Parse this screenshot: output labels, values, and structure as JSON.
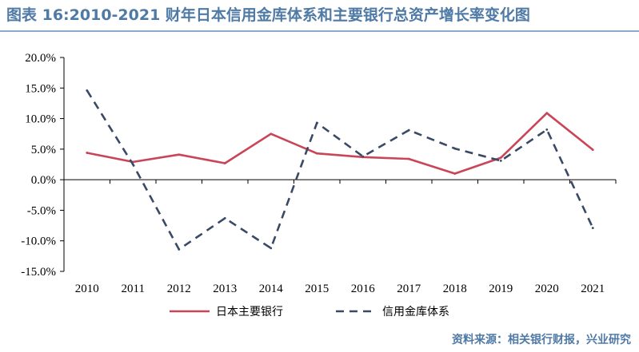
{
  "title": "图表 16:2010-2021 财年日本信用金库体系和主要银行总资产增长率变化图",
  "source": "资料来源：相关银行财报，兴业研究",
  "colors": {
    "series1": "#c94557",
    "series2": "#3a4a66",
    "title": "#4f7aa5"
  },
  "chart_data": {
    "type": "line",
    "x": [
      "2010",
      "2011",
      "2012",
      "2013",
      "2014",
      "2015",
      "2016",
      "2017",
      "2018",
      "2019",
      "2020",
      "2021"
    ],
    "ylim": [
      -15,
      20
    ],
    "yticks": [
      "20.0%",
      "15.0%",
      "10.0%",
      "5.0%",
      "0.0%",
      "-5.0%",
      "-10.0%",
      "-15.0%"
    ],
    "ytick_values": [
      20,
      15,
      10,
      5,
      0,
      -5,
      -10,
      -15
    ],
    "legend_position": "bottom",
    "grid": false,
    "series": [
      {
        "name": "日本主要银行",
        "style": "solid",
        "values": [
          4.4,
          2.9,
          4.1,
          2.7,
          7.5,
          4.3,
          3.7,
          3.4,
          1.0,
          3.6,
          10.9,
          4.9
        ]
      },
      {
        "name": "信用金库体系",
        "style": "dashed",
        "values": [
          14.6,
          2.5,
          -11.4,
          -6.3,
          -11.2,
          9.3,
          3.8,
          8.1,
          5.1,
          3.1,
          8.2,
          -7.9
        ]
      }
    ]
  }
}
